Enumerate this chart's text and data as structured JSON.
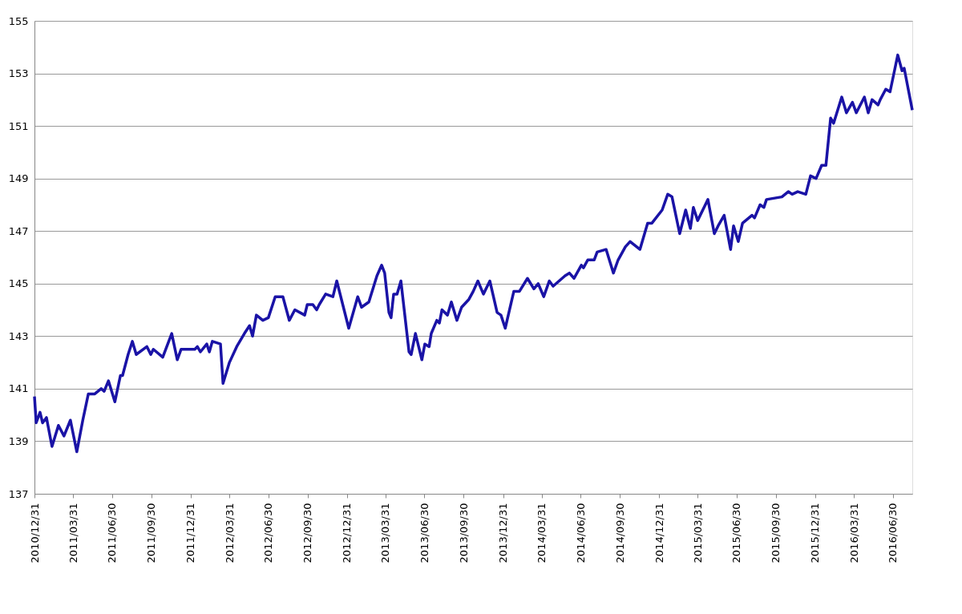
{
  "chart_data": {
    "type": "line",
    "x": [
      "2010-12-31",
      "2011-01-04",
      "2011-01-13",
      "2011-01-19",
      "2011-01-28",
      "2011-02-10",
      "2011-02-25",
      "2011-03-10",
      "2011-03-25",
      "2011-04-09",
      "2011-04-23",
      "2011-05-06",
      "2011-05-21",
      "2011-06-05",
      "2011-06-12",
      "2011-06-22",
      "2011-07-07",
      "2011-07-20",
      "2011-07-25",
      "2011-08-07",
      "2011-08-17",
      "2011-08-26",
      "2011-09-20",
      "2011-09-29",
      "2011-10-05",
      "2011-10-27",
      "2011-11-17",
      "2011-11-30",
      "2011-12-09",
      "2012-01-10",
      "2012-01-16",
      "2012-01-23",
      "2012-02-07",
      "2012-02-13",
      "2012-02-20",
      "2012-03-10",
      "2012-03-16",
      "2012-03-31",
      "2012-04-17",
      "2012-05-05",
      "2012-05-17",
      "2012-05-24",
      "2012-06-02",
      "2012-06-17",
      "2012-06-30",
      "2012-07-16",
      "2012-08-03",
      "2012-08-18",
      "2012-08-31",
      "2012-09-23",
      "2012-09-29",
      "2012-10-12",
      "2012-10-21",
      "2012-10-27",
      "2012-11-11",
      "2012-11-28",
      "2012-12-07",
      "2013-01-04",
      "2013-01-25",
      "2013-02-03",
      "2013-02-20",
      "2013-03-11",
      "2013-03-22",
      "2013-03-29",
      "2013-04-08",
      "2013-04-13",
      "2013-04-19",
      "2013-04-27",
      "2013-05-06",
      "2013-05-25",
      "2013-05-30",
      "2013-06-09",
      "2013-06-24",
      "2013-07-01",
      "2013-07-11",
      "2013-07-16",
      "2013-07-29",
      "2013-08-04",
      "2013-08-10",
      "2013-08-23",
      "2013-09-01",
      "2013-09-14",
      "2013-09-25",
      "2013-10-12",
      "2013-10-22",
      "2013-11-02",
      "2013-11-15",
      "2013-11-30",
      "2013-12-17",
      "2013-12-26",
      "2014-01-05",
      "2014-01-25",
      "2014-02-07",
      "2014-02-26",
      "2014-03-13",
      "2014-03-23",
      "2014-04-05",
      "2014-04-18",
      "2014-04-27",
      "2014-05-25",
      "2014-06-04",
      "2014-06-15",
      "2014-07-02",
      "2014-07-07",
      "2014-07-17",
      "2014-08-01",
      "2014-08-08",
      "2014-08-29",
      "2014-09-15",
      "2014-09-26",
      "2014-10-13",
      "2014-10-24",
      "2014-11-16",
      "2014-12-04",
      "2014-12-14",
      "2015-01-07",
      "2015-01-20",
      "2015-01-30",
      "2015-02-17",
      "2015-03-03",
      "2015-03-14",
      "2015-03-21",
      "2015-03-31",
      "2015-04-24",
      "2015-05-09",
      "2015-05-18",
      "2015-06-01",
      "2015-06-16",
      "2015-06-23",
      "2015-07-04",
      "2015-07-14",
      "2015-08-05",
      "2015-08-11",
      "2015-08-24",
      "2015-09-02",
      "2015-09-08",
      "2015-10-14",
      "2015-10-29",
      "2015-11-07",
      "2015-11-20",
      "2015-12-09",
      "2015-12-20",
      "2016-01-02",
      "2016-01-15",
      "2016-01-25",
      "2016-02-05",
      "2016-02-12",
      "2016-03-02",
      "2016-03-13",
      "2016-03-27",
      "2016-04-05",
      "2016-04-24",
      "2016-05-03",
      "2016-05-12",
      "2016-05-26",
      "2016-05-31",
      "2016-06-13",
      "2016-06-23",
      "2016-07-11",
      "2016-07-21",
      "2016-07-26",
      "2016-08-14"
    ],
    "series": [
      {
        "color": "#1a13a6",
        "values": [
          140.7,
          139.7,
          140.1,
          139.7,
          139.9,
          138.8,
          139.6,
          139.2,
          139.8,
          138.6,
          139.8,
          140.8,
          140.8,
          141.0,
          140.9,
          141.3,
          140.5,
          141.5,
          141.5,
          142.3,
          142.8,
          142.3,
          142.6,
          142.3,
          142.5,
          142.2,
          143.1,
          142.1,
          142.5,
          142.5,
          142.6,
          142.4,
          142.7,
          142.4,
          142.8,
          142.7,
          141.2,
          142.0,
          142.6,
          143.1,
          143.4,
          143.0,
          143.8,
          143.6,
          143.7,
          144.5,
          144.5,
          143.6,
          144.0,
          143.8,
          144.2,
          144.2,
          144.0,
          144.2,
          144.6,
          144.5,
          145.1,
          143.3,
          144.5,
          144.1,
          144.3,
          145.3,
          145.7,
          145.4,
          143.9,
          143.7,
          144.6,
          144.6,
          145.1,
          142.4,
          142.3,
          143.1,
          142.1,
          142.7,
          142.6,
          143.1,
          143.6,
          143.5,
          144.0,
          143.8,
          144.3,
          143.6,
          144.1,
          144.4,
          144.7,
          145.1,
          144.6,
          145.1,
          143.9,
          143.8,
          143.3,
          144.7,
          144.7,
          145.2,
          144.8,
          145.0,
          144.5,
          145.1,
          144.9,
          145.3,
          145.4,
          145.2,
          145.7,
          145.6,
          145.9,
          145.9,
          146.2,
          146.3,
          145.4,
          145.9,
          146.4,
          146.6,
          146.3,
          147.3,
          147.3,
          147.8,
          148.4,
          148.3,
          146.9,
          147.8,
          147.1,
          147.9,
          147.4,
          148.2,
          146.9,
          147.2,
          147.6,
          146.3,
          147.2,
          146.6,
          147.3,
          147.6,
          147.5,
          148.0,
          147.9,
          148.2,
          148.3,
          148.5,
          148.4,
          148.5,
          148.4,
          149.1,
          149.0,
          149.5,
          149.5,
          151.3,
          151.1,
          152.1,
          151.5,
          151.9,
          151.5,
          152.1,
          151.5,
          152.0,
          151.8,
          152.0,
          152.4,
          152.3,
          153.7,
          153.1,
          153.2,
          151.6
        ]
      }
    ],
    "xlim": [
      "2010-12-31",
      "2016-08-14"
    ],
    "xticks": [
      {
        "value": "2010-12-31",
        "label": "2010/12/31"
      },
      {
        "value": "2011-03-31",
        "label": "2011/03/31"
      },
      {
        "value": "2011-06-30",
        "label": "2011/06/30"
      },
      {
        "value": "2011-09-30",
        "label": "2011/09/30"
      },
      {
        "value": "2011-12-31",
        "label": "2011/12/31"
      },
      {
        "value": "2012-03-31",
        "label": "2012/03/31"
      },
      {
        "value": "2012-06-30",
        "label": "2012/06/30"
      },
      {
        "value": "2012-09-30",
        "label": "2012/09/30"
      },
      {
        "value": "2012-12-31",
        "label": "2012/12/31"
      },
      {
        "value": "2013-03-31",
        "label": "2013/03/31"
      },
      {
        "value": "2013-06-30",
        "label": "2013/06/30"
      },
      {
        "value": "2013-09-30",
        "label": "2013/09/30"
      },
      {
        "value": "2013-12-31",
        "label": "2013/12/31"
      },
      {
        "value": "2014-03-31",
        "label": "2014/03/31"
      },
      {
        "value": "2014-06-30",
        "label": "2014/06/30"
      },
      {
        "value": "2014-09-30",
        "label": "2014/09/30"
      },
      {
        "value": "2014-12-31",
        "label": "2014/12/31"
      },
      {
        "value": "2015-03-31",
        "label": "2015/03/31"
      },
      {
        "value": "2015-06-30",
        "label": "2015/06/30"
      },
      {
        "value": "2015-09-30",
        "label": "2015/09/30"
      },
      {
        "value": "2015-12-31",
        "label": "2015/12/31"
      },
      {
        "value": "2016-03-31",
        "label": "2016/03/31"
      },
      {
        "value": "2016-06-30",
        "label": "2016/06/30"
      }
    ],
    "ylim": [
      137,
      155
    ],
    "yticks": [
      137,
      139,
      141,
      143,
      145,
      147,
      149,
      151,
      153,
      155
    ],
    "grid": "y",
    "marker": "none",
    "line_style": "solid"
  }
}
